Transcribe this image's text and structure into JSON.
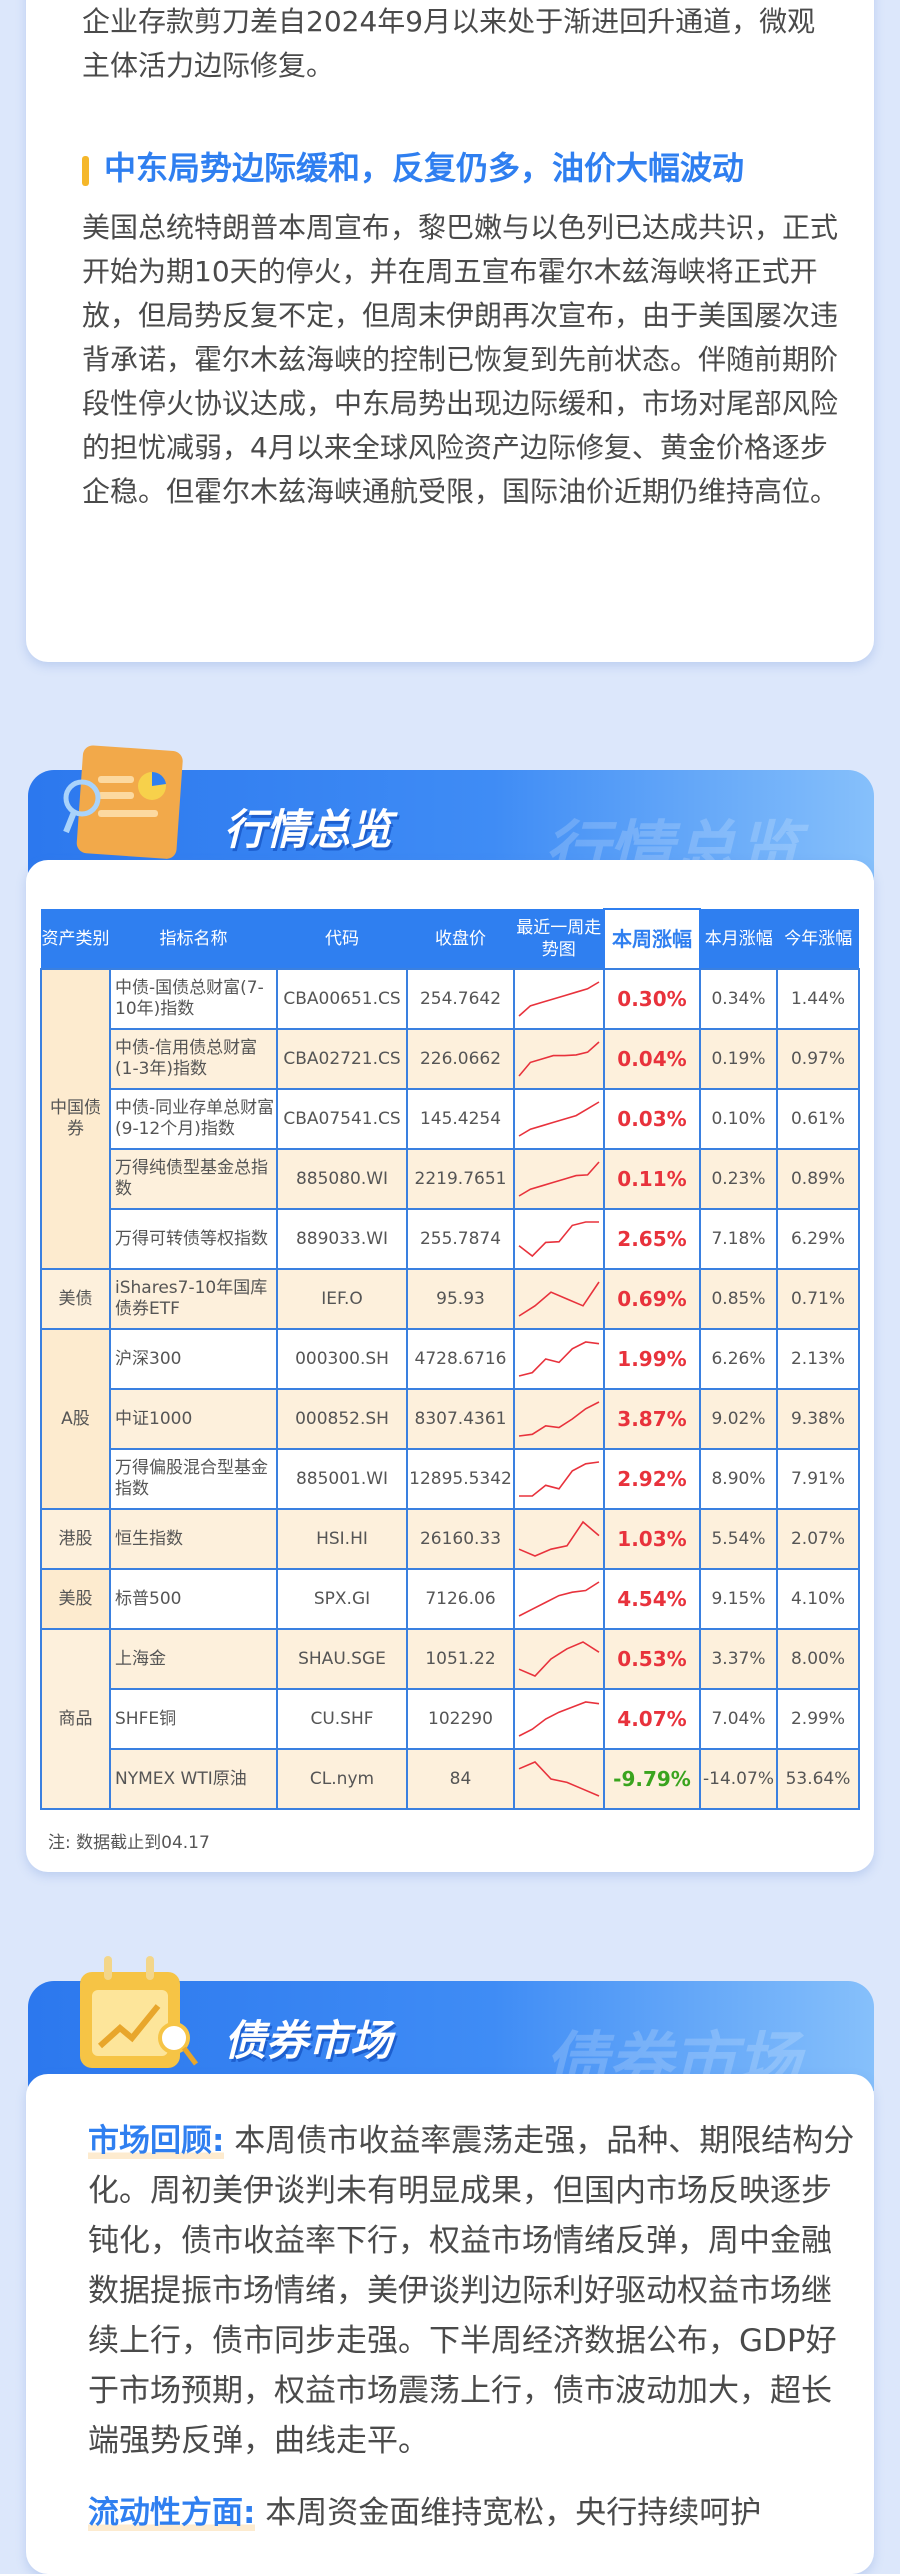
{
  "section1": {
    "paragraph_tail": "企业存款剪刀差自2024年9月以来处于渐进回升通道，微观主体活力边际修复。",
    "heading": "中东局势边际缓和，反复仍多，油价大幅波动",
    "paragraph": "美国总统特朗普本周宣布，黎巴嫩与以色列已达成共识，正式开始为期10天的停火，并在周五宣布霍尔木兹海峡将正式开放，但局势反复不定，但周末伊朗再次宣布，由于美国屡次违背承诺，霍尔木兹海峡的控制已恢复到先前状态。伴随前期阶段性停火协议达成，中东局势出现边际缓和，市场对尾部风险的担忧减弱，4月以来全球风险资产边际修复、黄金价格逐步企稳。但霍尔木兹海峡通航受限，国际油价近期仍维持高位。"
  },
  "overview": {
    "title": "行情总览",
    "headers": [
      "资产类别",
      "指标名称",
      "代码",
      "收盘价",
      "最近一周走势图",
      "本周涨幅",
      "本月涨幅",
      "今年涨幅"
    ],
    "colors": {
      "up": "#e8323c",
      "down": "#3aa41e",
      "accent": "#2f7ff0"
    },
    "groups": [
      {
        "category": "中国债券",
        "rows": [
          {
            "name": "中债-国债总财富(7-10年)指数",
            "code": "CBA00651.CS",
            "close": "254.7642",
            "spark": [
              0,
              3,
              4,
              5,
              6,
              7,
              8,
              10
            ],
            "week": "0.30%",
            "month": "0.34%",
            "ytd": "1.44%"
          },
          {
            "name": "中债-信用债总财富(1-3年)指数",
            "code": "CBA02721.CS",
            "close": "226.0662",
            "spark": [
              0,
              4,
              5,
              6,
              6,
              6.2,
              7,
              10
            ],
            "week": "0.04%",
            "month": "0.19%",
            "ytd": "0.97%"
          },
          {
            "name": "中债-同业存单总财富(9-12个月)指数",
            "code": "CBA07541.CS",
            "close": "145.4254",
            "spark": [
              0,
              2,
              3,
              4,
              5,
              6,
              8,
              10
            ],
            "week": "0.03%",
            "month": "0.10%",
            "ytd": "0.61%"
          },
          {
            "name": "万得纯债型基金总指数",
            "code": "885080.WI",
            "close": "2219.7651",
            "spark": [
              0,
              2,
              3,
              4,
              5,
              6,
              6.2,
              10
            ],
            "week": "0.11%",
            "month": "0.23%",
            "ytd": "0.89%"
          },
          {
            "name": "万得可转债等权指数",
            "code": "889033.WI",
            "close": "255.7874",
            "spark": [
              3,
              0,
              4,
              4.2,
              9,
              10,
              10
            ],
            "week": "2.65%",
            "month": "7.18%",
            "ytd": "6.29%"
          }
        ]
      },
      {
        "category": "美债",
        "rows": [
          {
            "name": "iShares7-10年国库债券ETF",
            "code": "IEF.O",
            "close": "95.93",
            "spark": [
              0,
              3,
              7,
              5,
              3,
              10
            ],
            "week": "0.69%",
            "month": "0.85%",
            "ytd": "0.71%"
          }
        ]
      },
      {
        "category": "A股",
        "rows": [
          {
            "name": "沪深300",
            "code": "000300.SH",
            "close": "4728.6716",
            "spark": [
              0,
              1,
              5,
              4,
              8,
              10,
              9.5
            ],
            "week": "1.99%",
            "month": "6.26%",
            "ytd": "2.13%"
          },
          {
            "name": "中证1000",
            "code": "000852.SH",
            "close": "8307.4361",
            "spark": [
              0,
              0.5,
              3,
              2.5,
              5,
              8,
              10
            ],
            "week": "3.87%",
            "month": "9.02%",
            "ytd": "9.38%"
          },
          {
            "name": "万得偏股混合型基金指数",
            "code": "885001.WI",
            "close": "12895.5342",
            "spark": [
              0,
              0,
              3,
              2,
              7,
              9,
              9.5
            ],
            "week": "2.92%",
            "month": "8.90%",
            "ytd": "7.91%"
          }
        ]
      },
      {
        "category": "港股",
        "rows": [
          {
            "name": "恒生指数",
            "code": "HSI.HI",
            "close": "26160.33",
            "spark": [
              2,
              0,
              2,
              3,
              10,
              6
            ],
            "week": "1.03%",
            "month": "5.54%",
            "ytd": "2.07%"
          }
        ]
      },
      {
        "category": "美股",
        "rows": [
          {
            "name": "标普500",
            "code": "SPX.GI",
            "close": "7126.06",
            "spark": [
              0,
              2,
              4,
              6,
              7,
              7.5,
              10
            ],
            "week": "4.54%",
            "month": "9.15%",
            "ytd": "4.10%"
          }
        ]
      },
      {
        "category": "商品",
        "rows": [
          {
            "name": "上海金",
            "code": "SHAU.SGE",
            "close": "1051.22",
            "spark": [
              2,
              0,
              5,
              8,
              10,
              7
            ],
            "week": "0.53%",
            "month": "3.37%",
            "ytd": "8.00%"
          },
          {
            "name": "SHFE铜",
            "code": "CU.SHF",
            "close": "102290",
            "spark": [
              0,
              2,
              5,
              7,
              8.5,
              10,
              9.5
            ],
            "week": "4.07%",
            "month": "7.04%",
            "ytd": "2.99%"
          },
          {
            "name": "NYMEX WTI原油",
            "code": "CL.nym",
            "close": "84",
            "spark": [
              8,
              10,
              5,
              4,
              2,
              0
            ],
            "week": "-9.79%",
            "month": "-14.07%",
            "ytd": "53.64%"
          }
        ]
      }
    ],
    "note": "注: 数据截止到04.17"
  },
  "bond": {
    "title": "债券市场",
    "review_label": "市场回顾:",
    "review_text": "本周债市收益率震荡走强，品种、期限结构分化。周初美伊谈判未有明显成果，但国内市场反映逐步钝化，债市收益率下行，权益市场情绪反弹，周中金融数据提振市场情绪，美伊谈判边际利好驱动权益市场继续上行，债市同步走强。下半周经济数据公布，GDP好于市场预期，权益市场震荡上行，债市波动加大，超长端强势反弹，曲线走平。",
    "liquidity_label": "流动性方面:",
    "liquidity_text": "本周资金面维持宽松，央行持续呵护"
  }
}
